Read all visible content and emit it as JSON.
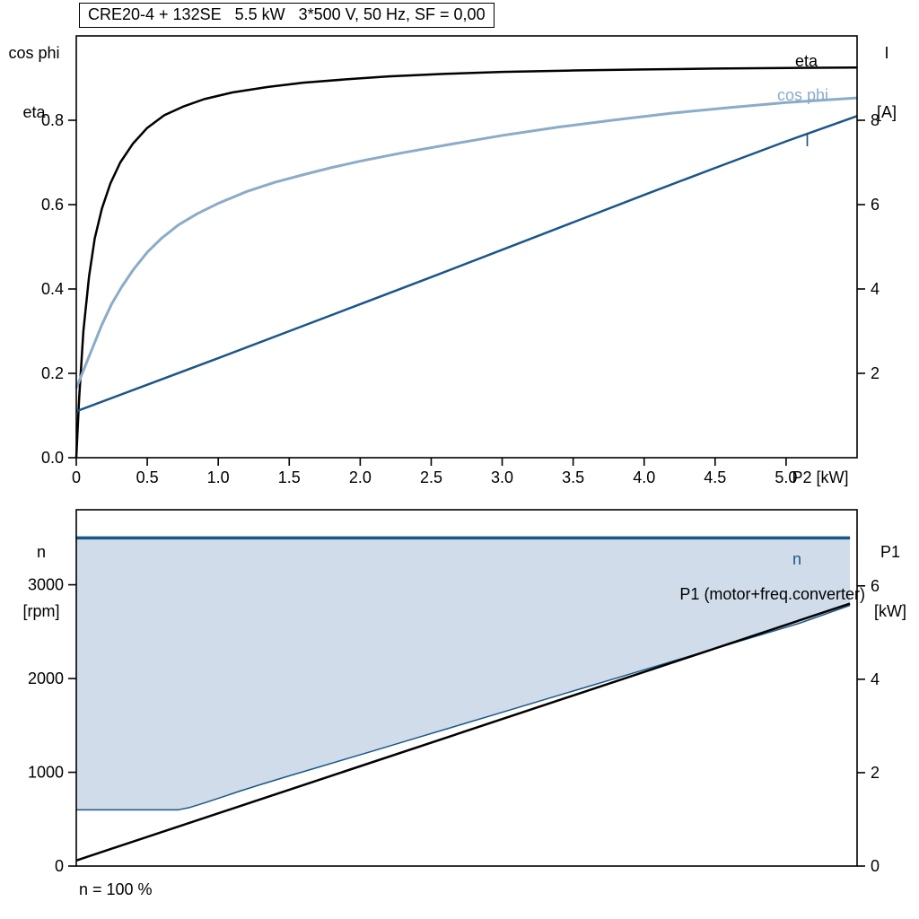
{
  "title": "CRE20-4 + 132SE   5.5 kW   3*500 V, 50 Hz, SF = 0,00",
  "colors": {
    "black": "#000000",
    "dark_blue": "#1b5688",
    "light_blue": "#8aacc8",
    "area_fill": "#d0dce9",
    "axis": "#000000"
  },
  "chart_data": [
    {
      "type": "line",
      "title": "CRE20-4 + 132SE   5.5 kW   3*500 V, 50 Hz, SF = 0,00",
      "grid": false,
      "x_axis": {
        "label": "P2 [kW]",
        "min": 0,
        "max": 5.5,
        "tick_values": [
          0,
          0.5,
          1.0,
          1.5,
          2.0,
          2.5,
          3.0,
          3.5,
          4.0,
          4.5,
          5.0
        ],
        "tick_labels": [
          "0",
          "0.5",
          "1.0",
          "1.5",
          "2.0",
          "2.5",
          "3.0",
          "3.5",
          "4.0",
          "4.5",
          "5.0"
        ]
      },
      "y_left": {
        "title_lines": [
          "cos phi",
          "eta"
        ],
        "min": 0,
        "max": 1.0,
        "tick_values": [
          0.0,
          0.2,
          0.4,
          0.6,
          0.8
        ],
        "tick_labels": [
          "0.0",
          "0.2",
          "0.4",
          "0.6",
          "0.8"
        ]
      },
      "y_right": {
        "title_lines": [
          "I",
          "[A]"
        ],
        "min": 0,
        "max": 10,
        "tick_values": [
          2,
          4,
          6,
          8
        ],
        "tick_labels": [
          "2",
          "4",
          "6",
          "8"
        ]
      },
      "series": [
        {
          "id": "eta",
          "label": "eta",
          "axis": "left",
          "color": "black",
          "width": 2.5,
          "points": [
            [
              0,
              0
            ],
            [
              0.02,
              0.14
            ],
            [
              0.05,
              0.3
            ],
            [
              0.09,
              0.43
            ],
            [
              0.13,
              0.52
            ],
            [
              0.18,
              0.59
            ],
            [
              0.24,
              0.65
            ],
            [
              0.31,
              0.7
            ],
            [
              0.4,
              0.745
            ],
            [
              0.5,
              0.782
            ],
            [
              0.62,
              0.812
            ],
            [
              0.75,
              0.832
            ],
            [
              0.9,
              0.85
            ],
            [
              1.1,
              0.866
            ],
            [
              1.35,
              0.879
            ],
            [
              1.6,
              0.889
            ],
            [
              1.9,
              0.897
            ],
            [
              2.2,
              0.904
            ],
            [
              2.6,
              0.91
            ],
            [
              3.0,
              0.9145
            ],
            [
              3.5,
              0.918
            ],
            [
              4.0,
              0.9205
            ],
            [
              4.5,
              0.9225
            ],
            [
              5.0,
              0.924
            ],
            [
              5.5,
              0.925
            ]
          ]
        },
        {
          "id": "cos_phi",
          "label": "cos phi",
          "axis": "left",
          "color": "light_blue",
          "width": 3,
          "points": [
            [
              0,
              0.165
            ],
            [
              0.06,
              0.215
            ],
            [
              0.12,
              0.265
            ],
            [
              0.18,
              0.315
            ],
            [
              0.25,
              0.365
            ],
            [
              0.32,
              0.405
            ],
            [
              0.4,
              0.445
            ],
            [
              0.5,
              0.487
            ],
            [
              0.6,
              0.52
            ],
            [
              0.72,
              0.552
            ],
            [
              0.85,
              0.578
            ],
            [
              1.0,
              0.603
            ],
            [
              1.2,
              0.631
            ],
            [
              1.4,
              0.653
            ],
            [
              1.6,
              0.671
            ],
            [
              1.8,
              0.688
            ],
            [
              2.0,
              0.703
            ],
            [
              2.3,
              0.723
            ],
            [
              2.6,
              0.741
            ],
            [
              3.0,
              0.764
            ],
            [
              3.4,
              0.784
            ],
            [
              3.8,
              0.801
            ],
            [
              4.2,
              0.817
            ],
            [
              4.6,
              0.83
            ],
            [
              5.0,
              0.842
            ],
            [
              5.5,
              0.853
            ]
          ]
        },
        {
          "id": "I",
          "label": "I",
          "axis": "right",
          "color": "dark_blue",
          "width": 2.5,
          "points": [
            [
              0,
              1.1
            ],
            [
              0.5,
              1.73
            ],
            [
              1.0,
              2.36
            ],
            [
              1.5,
              3.0
            ],
            [
              2.0,
              3.64
            ],
            [
              2.5,
              4.28
            ],
            [
              3.0,
              4.93
            ],
            [
              3.5,
              5.58
            ],
            [
              4.0,
              6.23
            ],
            [
              4.5,
              6.87
            ],
            [
              5.0,
              7.5
            ],
            [
              5.5,
              8.1
            ]
          ]
        }
      ]
    },
    {
      "type": "line+area",
      "grid": false,
      "footnote": "n = 100 %",
      "x_axis": {
        "label": "",
        "min": 0,
        "max": 5.5,
        "tick_values": [],
        "tick_labels": []
      },
      "y_left": {
        "title_lines": [
          "n",
          "[rpm]"
        ],
        "min": 0,
        "max": 3800,
        "tick_values": [
          0,
          1000,
          2000,
          3000
        ],
        "tick_labels": [
          "0",
          "1000",
          "2000",
          "3000"
        ]
      },
      "y_right": {
        "title_lines": [
          "P1",
          "[kW]"
        ],
        "min": 0,
        "max": 7.63,
        "tick_values": [
          0,
          2,
          4,
          6
        ],
        "tick_labels": [
          "0",
          "2",
          "4",
          "6"
        ]
      },
      "area": {
        "name": "speed-operating-range",
        "upper_id": "n",
        "lower_id": "n_min",
        "color": "area_fill"
      },
      "series": [
        {
          "id": "n",
          "label": "n",
          "axis": "left",
          "color": "dark_blue",
          "width": 3.5,
          "points": [
            [
              0,
              3500
            ],
            [
              5.45,
              3500
            ]
          ]
        },
        {
          "id": "n_min",
          "label": "",
          "axis": "left",
          "color": "dark_blue",
          "width": 1.5,
          "points": [
            [
              0,
              600
            ],
            [
              0.72,
              600
            ],
            [
              0.8,
              625
            ],
            [
              0.9,
              672
            ],
            [
              1.0,
              722
            ],
            [
              1.15,
              798
            ],
            [
              1.3,
              870
            ],
            [
              1.5,
              962
            ],
            [
              1.7,
              1052
            ],
            [
              1.9,
              1142
            ],
            [
              2.1,
              1232
            ],
            [
              2.4,
              1368
            ],
            [
              2.7,
              1504
            ],
            [
              3.0,
              1640
            ],
            [
              3.3,
              1776
            ],
            [
              3.6,
              1912
            ],
            [
              3.9,
              2048
            ],
            [
              4.2,
              2184
            ],
            [
              4.5,
              2320
            ],
            [
              4.8,
              2456
            ],
            [
              5.1,
              2592
            ],
            [
              5.45,
              2780
            ]
          ]
        },
        {
          "id": "P1",
          "label": "P1 (motor+freq.converter)",
          "axis": "right",
          "color": "black",
          "width": 2.5,
          "points": [
            [
              0,
              0.12
            ],
            [
              5.45,
              5.62
            ]
          ]
        }
      ]
    }
  ]
}
